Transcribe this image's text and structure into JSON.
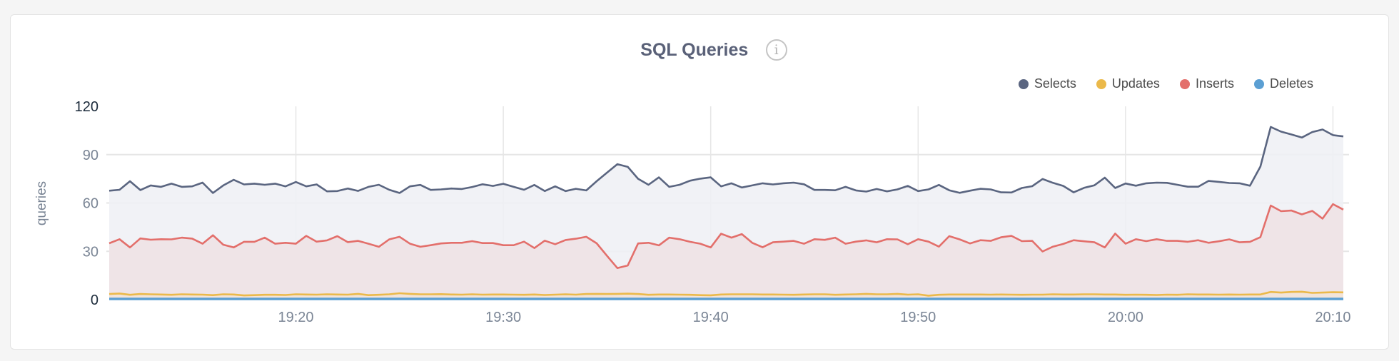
{
  "chart_data": {
    "type": "area",
    "title": "SQL Queries",
    "ylabel": "queries",
    "xlabel": "",
    "ylim": [
      0,
      120
    ],
    "yticks": [
      0,
      30,
      60,
      90,
      120
    ],
    "xticks": [
      "19:20",
      "19:30",
      "19:40",
      "19:50",
      "20:00",
      "20:10"
    ],
    "grid": true,
    "legend_position": "top-right",
    "x": [
      "19:11:00",
      "19:11:30",
      "19:12:00",
      "19:12:30",
      "19:13:00",
      "19:13:30",
      "19:14:00",
      "19:14:30",
      "19:15:00",
      "19:15:30",
      "19:16:00",
      "19:16:30",
      "19:17:00",
      "19:17:30",
      "19:18:00",
      "19:18:30",
      "19:19:00",
      "19:19:30",
      "19:20:00",
      "19:20:30",
      "19:21:00",
      "19:21:30",
      "19:22:00",
      "19:22:30",
      "19:23:00",
      "19:23:30",
      "19:24:00",
      "19:24:30",
      "19:25:00",
      "19:25:30",
      "19:26:00",
      "19:26:30",
      "19:27:00",
      "19:27:30",
      "19:28:00",
      "19:28:30",
      "19:29:00",
      "19:29:30",
      "19:30:00",
      "19:30:30",
      "19:31:00",
      "19:31:30",
      "19:32:00",
      "19:32:30",
      "19:33:00",
      "19:33:30",
      "19:34:00",
      "19:34:30",
      "19:35:00",
      "19:35:30",
      "19:36:00",
      "19:36:30",
      "19:37:00",
      "19:37:30",
      "19:38:00",
      "19:38:30",
      "19:39:00",
      "19:39:30",
      "19:40:00",
      "19:40:30",
      "19:41:00",
      "19:41:30",
      "19:42:00",
      "19:42:30",
      "19:43:00",
      "19:43:30",
      "19:44:00",
      "19:44:30",
      "19:45:00",
      "19:45:30",
      "19:46:00",
      "19:46:30",
      "19:47:00",
      "19:47:30",
      "19:48:00",
      "19:48:30",
      "19:49:00",
      "19:49:30",
      "19:50:00",
      "19:50:30",
      "19:51:00",
      "19:51:30",
      "19:52:00",
      "19:52:30",
      "19:53:00",
      "19:53:30",
      "19:54:00",
      "19:54:30",
      "19:55:00",
      "19:55:30",
      "19:56:00",
      "19:56:30",
      "19:57:00",
      "19:57:30",
      "19:58:00",
      "19:58:30",
      "19:59:00",
      "19:59:30",
      "20:00:00",
      "20:00:30",
      "20:01:00",
      "20:01:30",
      "20:02:00",
      "20:02:30",
      "20:03:00",
      "20:03:30",
      "20:04:00",
      "20:04:30",
      "20:05:00",
      "20:05:30",
      "20:06:00",
      "20:06:30",
      "20:07:00",
      "20:07:30",
      "20:08:00",
      "20:08:30",
      "20:09:00",
      "20:09:30",
      "20:10:00",
      "20:10:30"
    ],
    "series": [
      {
        "name": "Selects",
        "color": "#5a6580",
        "fill": "#eef0f4",
        "values": [
          67.6,
          68.2,
          73.5,
          68,
          70.9,
          70,
          72,
          70,
          70.3,
          72.6,
          66.2,
          70.9,
          74.4,
          71.5,
          72,
          71.3,
          72,
          70.3,
          73,
          70.3,
          71.5,
          67.2,
          67.4,
          69,
          67.5,
          70,
          71.3,
          68.2,
          66.2,
          70.3,
          71.2,
          68.1,
          68.4,
          69,
          68.7,
          69.9,
          71.6,
          70.6,
          71.9,
          70,
          68.2,
          71.2,
          67.4,
          70.3,
          67.4,
          68.8,
          67.8,
          73.5,
          78.8,
          84.1,
          82.4,
          75,
          71.3,
          75.9,
          70,
          71.3,
          73.8,
          75.1,
          75.9,
          70.3,
          72.2,
          69.6,
          70.9,
          72.2,
          71.5,
          72.2,
          72.6,
          71.6,
          68.1,
          68.1,
          67.9,
          70,
          67.8,
          67.1,
          68.7,
          67.2,
          68.4,
          70.6,
          67.4,
          68.4,
          71.2,
          67.9,
          66.3,
          67.6,
          68.8,
          68.4,
          66.6,
          66.5,
          69.3,
          70.4,
          74.9,
          72.5,
          70.6,
          66.6,
          69.4,
          71,
          75.7,
          69.3,
          72.1,
          70.7,
          72.2,
          72.6,
          72.5,
          71.3,
          70.1,
          70.1,
          73.7,
          73.1,
          72.4,
          72.2,
          70.7,
          82.6,
          107.2,
          104.3,
          102.5,
          100.6,
          104,
          105.6,
          102.1,
          101.3
        ]
      },
      {
        "name": "Updates",
        "color": "#ebb94a",
        "fill": "#f3e4d6",
        "values": [
          3.5,
          3.8,
          3,
          3.5,
          3.3,
          3.2,
          3,
          3.3,
          3.2,
          3.1,
          2.8,
          3.3,
          3.2,
          2.6,
          2.8,
          3,
          3,
          2.9,
          3.3,
          3.2,
          3.1,
          3.3,
          3.2,
          3.1,
          3.6,
          2.8,
          3,
          3.3,
          4,
          3.6,
          3.3,
          3.3,
          3.4,
          3.2,
          3.1,
          3.3,
          3.1,
          3.2,
          3.2,
          3.1,
          3,
          3.2,
          2.9,
          3.1,
          3.3,
          3.1,
          3.5,
          3.6,
          3.5,
          3.6,
          3.7,
          3.5,
          3,
          3.2,
          3.2,
          3.1,
          3,
          2.8,
          2.7,
          3.2,
          3.3,
          3.3,
          3.3,
          3.2,
          3.2,
          3.1,
          3,
          3.2,
          3.3,
          3.3,
          3,
          3.2,
          3.3,
          3.6,
          3.3,
          3.3,
          3.6,
          3.1,
          3.3,
          2.5,
          3,
          3.2,
          3.2,
          3.2,
          3.2,
          3.1,
          3.2,
          3.1,
          3,
          3.1,
          3.1,
          3.3,
          3.2,
          3.2,
          3.3,
          3.3,
          3.2,
          3.2,
          3,
          3.1,
          3,
          2.9,
          3.1,
          3,
          3.3,
          3.2,
          3.2,
          3.1,
          3.2,
          3.1,
          3.2,
          3.2,
          4.8,
          4.4,
          4.8,
          4.9,
          4.2,
          4.4,
          4.6,
          4.5
        ]
      },
      {
        "name": "Inserts",
        "color": "#e36f6b",
        "fill": "#efe2e4",
        "values": [
          35,
          37.5,
          32.4,
          38,
          37.2,
          37.5,
          37.4,
          38.5,
          37.9,
          34.7,
          40,
          34.1,
          32.4,
          35.9,
          35.9,
          38.5,
          34.7,
          35.3,
          34.7,
          39.6,
          36,
          36.8,
          39.4,
          35.7,
          36.5,
          34.7,
          32.8,
          37.4,
          39,
          34.7,
          32.8,
          33.8,
          34.9,
          35.3,
          35.3,
          36.3,
          35.1,
          35.1,
          33.8,
          33.8,
          36,
          32,
          36.6,
          34.4,
          37,
          37.8,
          39,
          35,
          27.2,
          19.6,
          21.2,
          34.9,
          35.3,
          33.7,
          38.5,
          37.5,
          35.9,
          34.7,
          32.4,
          40.9,
          38.5,
          40.7,
          35.3,
          32.5,
          35.6,
          36,
          36.5,
          34.7,
          37.5,
          37.1,
          38.5,
          34.7,
          36,
          36.8,
          35.6,
          37.5,
          37.4,
          34.4,
          37.5,
          36,
          32.9,
          39.4,
          37.4,
          34.9,
          36.9,
          36.5,
          38.7,
          39.6,
          36.3,
          36.5,
          29.9,
          32.9,
          34.6,
          36.9,
          36.2,
          35.6,
          32.4,
          41,
          34.7,
          37.5,
          36.3,
          37.5,
          36.5,
          36.5,
          35.9,
          36.9,
          35.3,
          36.2,
          37.4,
          35.6,
          35.9,
          38.8,
          58.4,
          54.9,
          55.3,
          52.9,
          55.1,
          50.3,
          59.3,
          55.9
        ]
      },
      {
        "name": "Deletes",
        "color": "#5b9fd3",
        "fill": "#dbe8f3",
        "values": [
          0,
          0,
          0,
          0,
          0,
          0,
          0,
          0,
          0,
          0,
          0,
          0,
          0,
          0,
          0,
          0,
          0,
          0,
          0,
          0,
          0,
          0,
          0,
          0,
          0,
          0,
          0,
          0,
          0,
          0,
          0,
          0,
          0,
          0,
          0,
          0,
          0,
          0,
          0,
          0,
          0,
          0,
          0,
          0,
          0,
          0,
          0,
          0,
          0,
          0,
          0,
          0,
          0,
          0,
          0,
          0,
          0,
          0,
          0,
          0,
          0,
          0,
          0,
          0,
          0,
          0,
          0,
          0,
          0,
          0,
          0,
          0,
          0,
          0,
          0,
          0,
          0,
          0,
          0,
          0,
          0,
          0,
          0,
          0,
          0,
          0,
          0,
          0,
          0,
          0,
          0,
          0,
          0,
          0,
          0,
          0,
          0,
          0,
          0,
          0,
          0,
          0,
          0,
          0,
          0,
          0,
          0,
          0,
          0,
          0,
          0,
          0,
          0,
          0,
          0,
          0,
          0,
          0,
          0,
          0
        ]
      }
    ]
  },
  "info_icon": "info-icon"
}
